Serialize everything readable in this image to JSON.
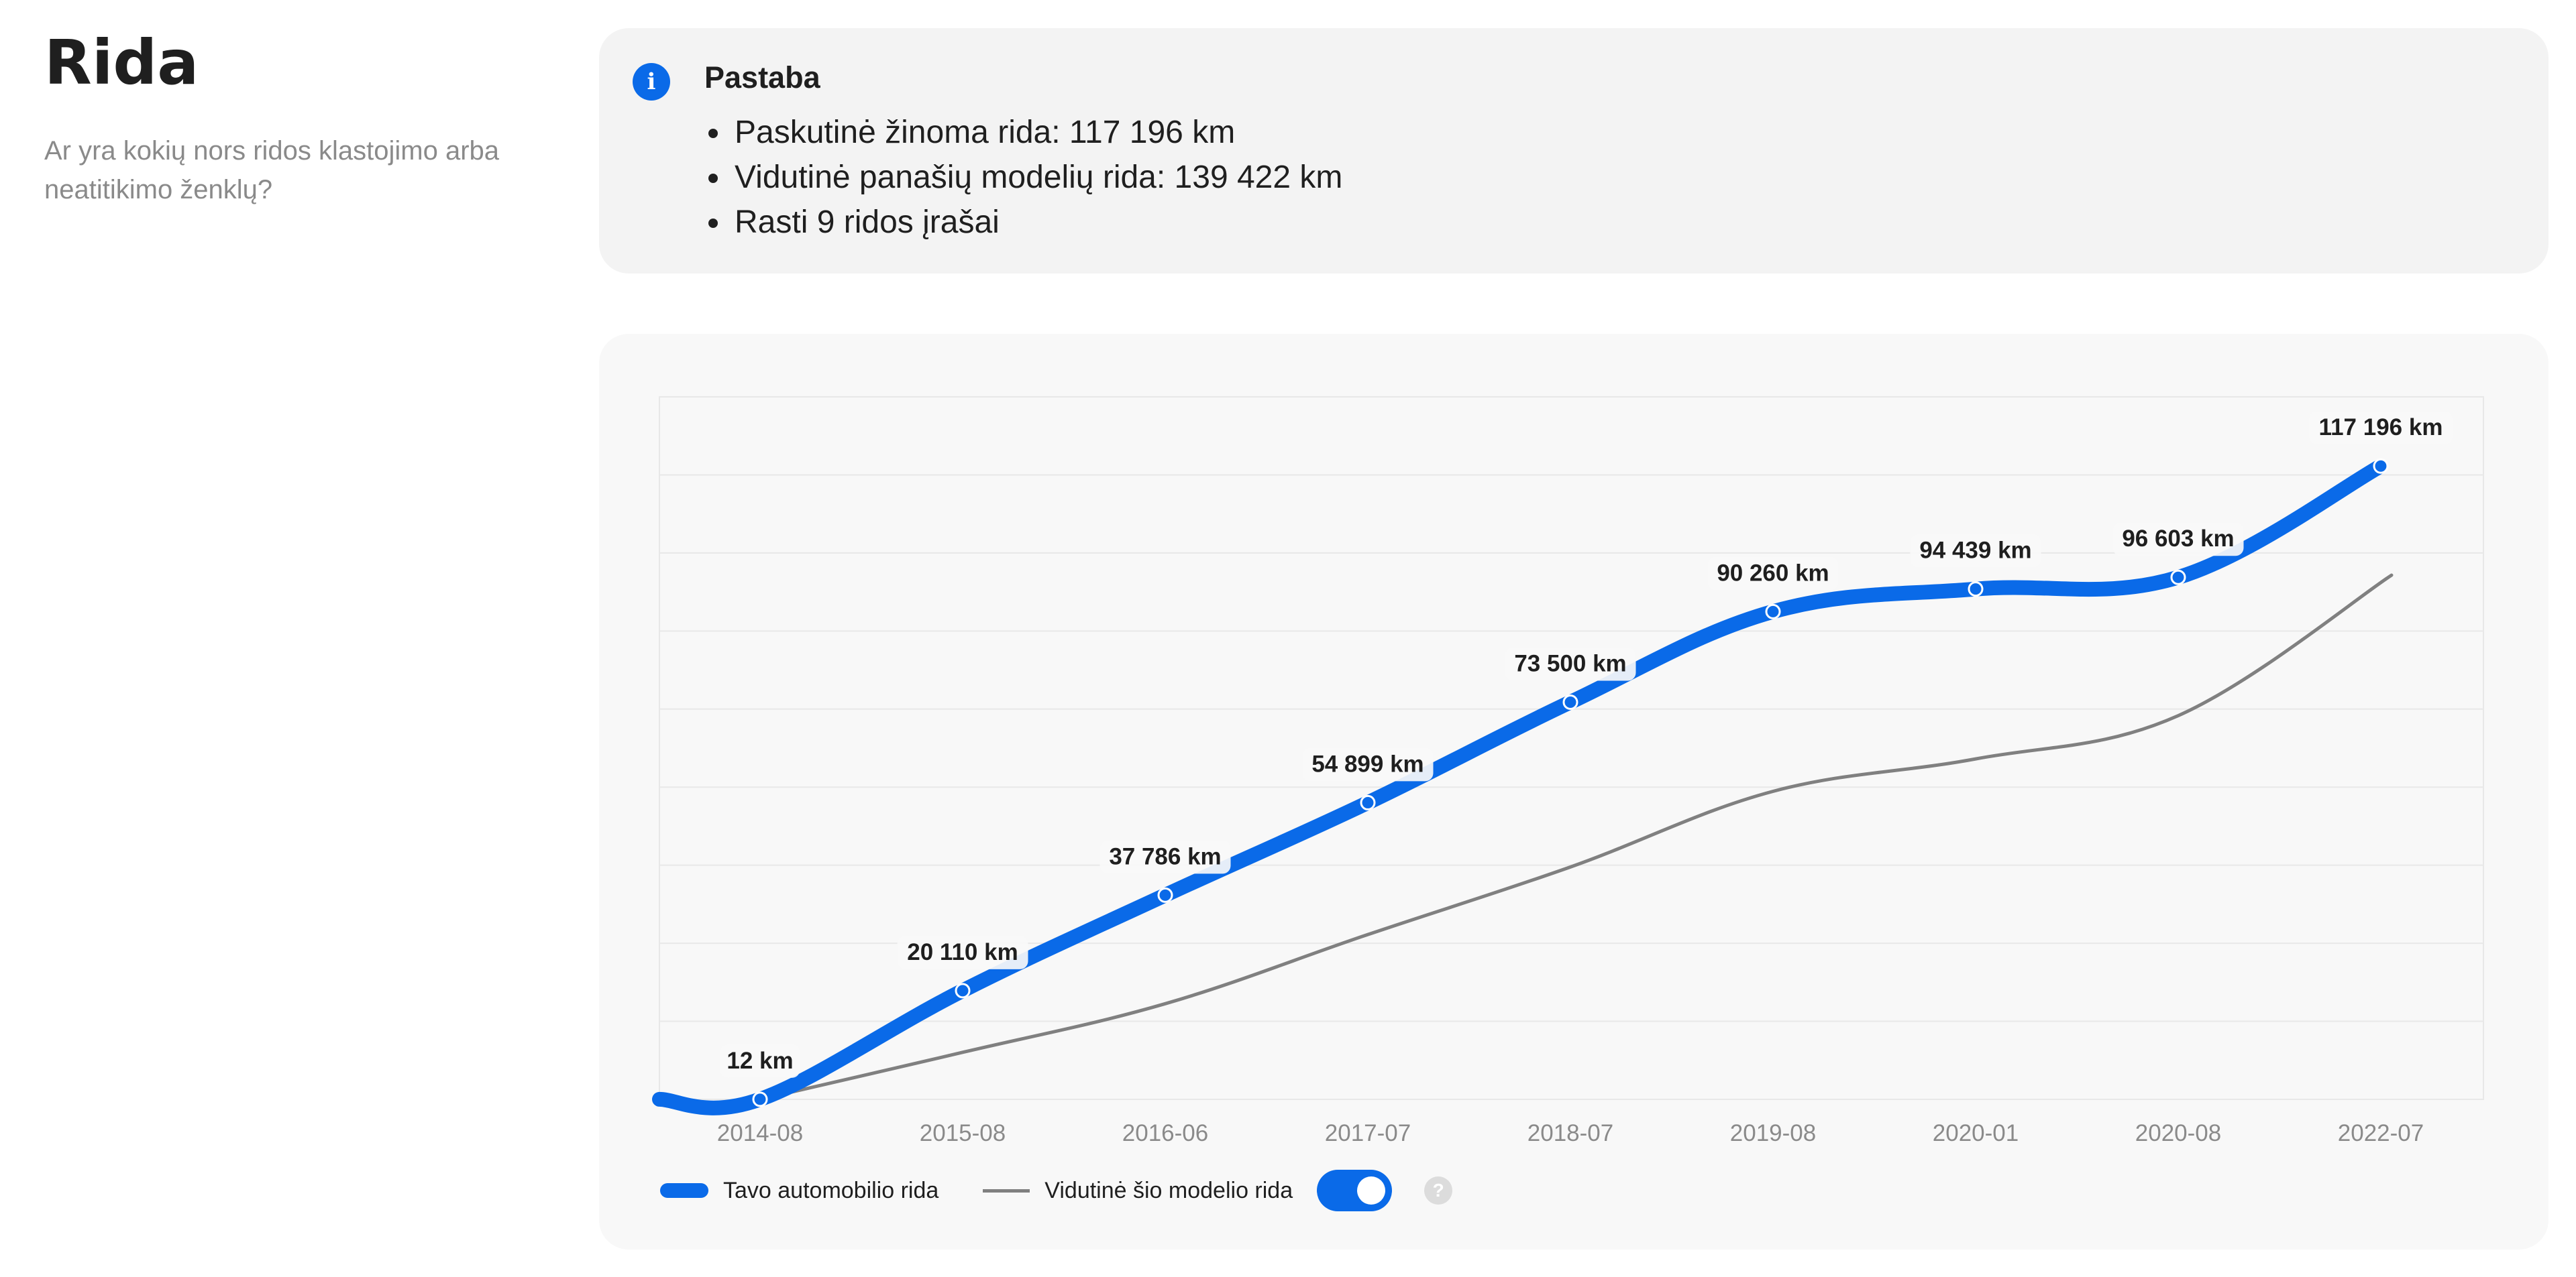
{
  "section": {
    "title": "Rida",
    "subtitle": "Ar yra kokių nors ridos klastojimo arba neatitikimo ženklų?"
  },
  "note": {
    "icon": "info-icon",
    "title": "Pastaba",
    "items": [
      "Paskutinė žinoma rida: 117 196 km",
      "Vidutinė panašių modelių rida: 139 422 km",
      "Rasti 9 ridos įrašai"
    ]
  },
  "legend": {
    "series_own": "Tavo automobilio rida",
    "series_avg": "Vidutinė šio modelio rida",
    "toggle_on": true,
    "help_label": "?"
  },
  "colors": {
    "accent": "#0a6ae8",
    "average_line": "#808080",
    "grid": "#e8e8e8"
  },
  "chart_data": {
    "type": "line",
    "categories": [
      "2014-08",
      "2015-08",
      "2016-06",
      "2017-07",
      "2018-07",
      "2019-08",
      "2020-01",
      "2020-08",
      "2022-07"
    ],
    "series": [
      {
        "name": "Tavo automobilio rida",
        "values": [
          12,
          20110,
          37786,
          54899,
          73500,
          90260,
          94439,
          96603,
          117196
        ],
        "labels": [
          "12 km",
          "20 110 km",
          "37 786 km",
          "54 899 km",
          "73 500 km",
          "90 260 km",
          "94 439 km",
          "96 603 km",
          "117 196 km"
        ]
      },
      {
        "name": "Vidutinė šio modelio rida",
        "values": [
          0,
          8700,
          17700,
          30500,
          43000,
          57000,
          63000,
          71000,
          97000
        ]
      }
    ],
    "ylim": [
      0,
      130000
    ],
    "grid": true,
    "xlabel": "",
    "ylabel": "",
    "legend_position": "bottom-left"
  }
}
